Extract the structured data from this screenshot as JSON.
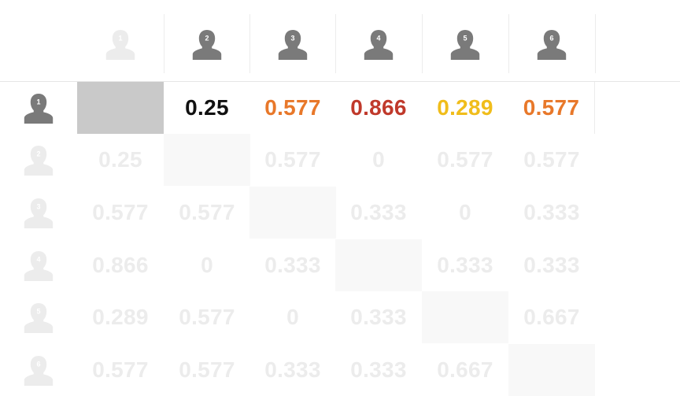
{
  "colors": {
    "icon_active": "#7a7a7a",
    "icon_faded": "#ececec",
    "diag_active": "#c9c9c9",
    "diag_faded": "#f8f8f8",
    "black": "#111111",
    "orange": "#e8782a",
    "red": "#c0392b",
    "yellow": "#f0bd1b",
    "faded_text": "#ececec"
  },
  "columns": [
    {
      "label": "1",
      "icon": "person-icon",
      "active": false
    },
    {
      "label": "2",
      "icon": "person-icon",
      "active": true
    },
    {
      "label": "3",
      "icon": "person-icon",
      "active": true
    },
    {
      "label": "4",
      "icon": "person-icon",
      "active": true
    },
    {
      "label": "5",
      "icon": "person-icon",
      "active": true
    },
    {
      "label": "6",
      "icon": "person-icon",
      "active": true
    }
  ],
  "rows": [
    {
      "label": "1",
      "active": true,
      "values": [
        "",
        "0.25",
        "0.577",
        "0.866",
        "0.289",
        "0.577"
      ],
      "colors": [
        "",
        "black",
        "orange",
        "red",
        "yellow",
        "orange"
      ]
    },
    {
      "label": "2",
      "active": false,
      "values": [
        "0.25",
        "",
        "0.577",
        "0",
        "0.577",
        "0.577"
      ]
    },
    {
      "label": "3",
      "active": false,
      "values": [
        "0.577",
        "0.577",
        "",
        "0.333",
        "0",
        "0.333"
      ]
    },
    {
      "label": "4",
      "active": false,
      "values": [
        "0.866",
        "0",
        "0.333",
        "",
        "0.333",
        "0.333"
      ]
    },
    {
      "label": "5",
      "active": false,
      "values": [
        "0.289",
        "0.577",
        "0",
        "0.333",
        "",
        "0.667"
      ]
    },
    {
      "label": "6",
      "active": false,
      "values": [
        "0.577",
        "0.577",
        "0.333",
        "0.333",
        "0.667",
        ""
      ]
    }
  ]
}
